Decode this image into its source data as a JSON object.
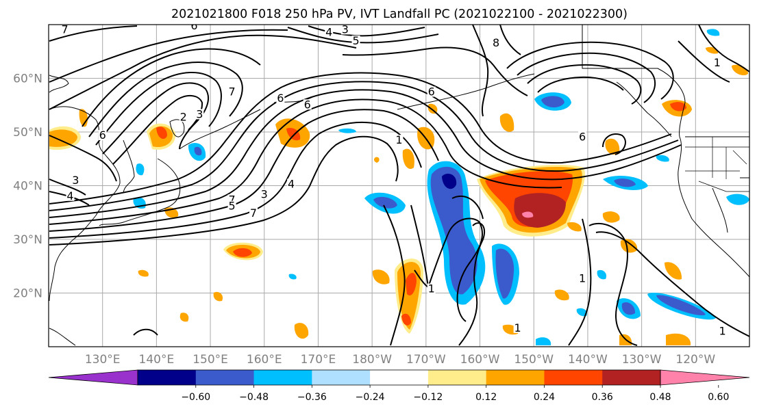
{
  "title": "2021021800 F018 250 hPa PV, IVT Landfall PC (2021022100 - 2021022300)",
  "lat_labels": [
    {
      "label": "60°N",
      "lat": 60
    },
    {
      "label": "50°N",
      "lat": 50
    },
    {
      "label": "40°N",
      "lat": 40
    },
    {
      "label": "30°N",
      "lat": 30
    },
    {
      "label": "20°N",
      "lat": 20
    }
  ],
  "lon_labels": [
    {
      "label": "130°E",
      "lon": 130
    },
    {
      "label": "140°E",
      "lon": 140
    },
    {
      "label": "150°E",
      "lon": 150
    },
    {
      "label": "160°E",
      "lon": 160
    },
    {
      "label": "170°E",
      "lon": 170
    },
    {
      "label": "180°W",
      "lon": 180
    },
    {
      "label": "170°W",
      "lon": 190
    },
    {
      "label": "160°W",
      "lon": 200
    },
    {
      "label": "150°W",
      "lon": 210
    },
    {
      "label": "140°W",
      "lon": 220
    },
    {
      "label": "130°W",
      "lon": 230
    },
    {
      "label": "120°W",
      "lon": 240
    }
  ],
  "map_extent": {
    "lon_min": 120,
    "lon_max": 250,
    "lat_min": 10,
    "lat_max": 70
  },
  "colorbar": {
    "colors": [
      "#9932cc",
      "#00008b",
      "#3b5bcc",
      "#00bfff",
      "#b0e0ff",
      "#ffffff",
      "#ffec8b",
      "#ffa500",
      "#ff4500",
      "#b22222",
      "#ff82ab"
    ],
    "ticks": [
      "−0.60",
      "−0.48",
      "−0.36",
      "−0.24",
      "−0.12",
      "0.12",
      "0.24",
      "0.36",
      "0.48",
      "0.60"
    ]
  },
  "contour_labels": [
    {
      "text": "7",
      "lon": 123,
      "lat": 68.8
    },
    {
      "text": "6",
      "lon": 147,
      "lat": 69.5
    },
    {
      "text": "4",
      "lon": 172,
      "lat": 68.3
    },
    {
      "text": "3",
      "lon": 175,
      "lat": 68.8
    },
    {
      "text": "5",
      "lon": 177,
      "lat": 66.7
    },
    {
      "text": "8",
      "lon": 203,
      "lat": 66.3
    },
    {
      "text": "1",
      "lon": 244,
      "lat": 62.6
    },
    {
      "text": "7",
      "lon": 154,
      "lat": 57.2
    },
    {
      "text": "6",
      "lon": 168,
      "lat": 54.8
    },
    {
      "text": "6",
      "lon": 163,
      "lat": 56.0
    },
    {
      "text": "6",
      "lon": 191,
      "lat": 57.2
    },
    {
      "text": "6",
      "lon": 130,
      "lat": 49.1
    },
    {
      "text": "2",
      "lon": 145,
      "lat": 52.5
    },
    {
      "text": "3",
      "lon": 148,
      "lat": 53.0
    },
    {
      "text": "1",
      "lon": 185,
      "lat": 48.2
    },
    {
      "text": "6",
      "lon": 219,
      "lat": 48.8
    },
    {
      "text": "3",
      "lon": 125,
      "lat": 40.7
    },
    {
      "text": "4",
      "lon": 124,
      "lat": 37.8
    },
    {
      "text": "4",
      "lon": 165,
      "lat": 40.0
    },
    {
      "text": "3",
      "lon": 160,
      "lat": 38.1
    },
    {
      "text": "7",
      "lon": 154,
      "lat": 37.1
    },
    {
      "text": "5",
      "lon": 154,
      "lat": 35.9
    },
    {
      "text": "7",
      "lon": 158,
      "lat": 34.6
    },
    {
      "text": "1",
      "lon": 191,
      "lat": 20.5
    },
    {
      "text": "1",
      "lon": 207,
      "lat": 13.2
    },
    {
      "text": "1",
      "lon": 219,
      "lat": 22.4
    },
    {
      "text": "1",
      "lon": 245,
      "lat": 12.6
    }
  ]
}
